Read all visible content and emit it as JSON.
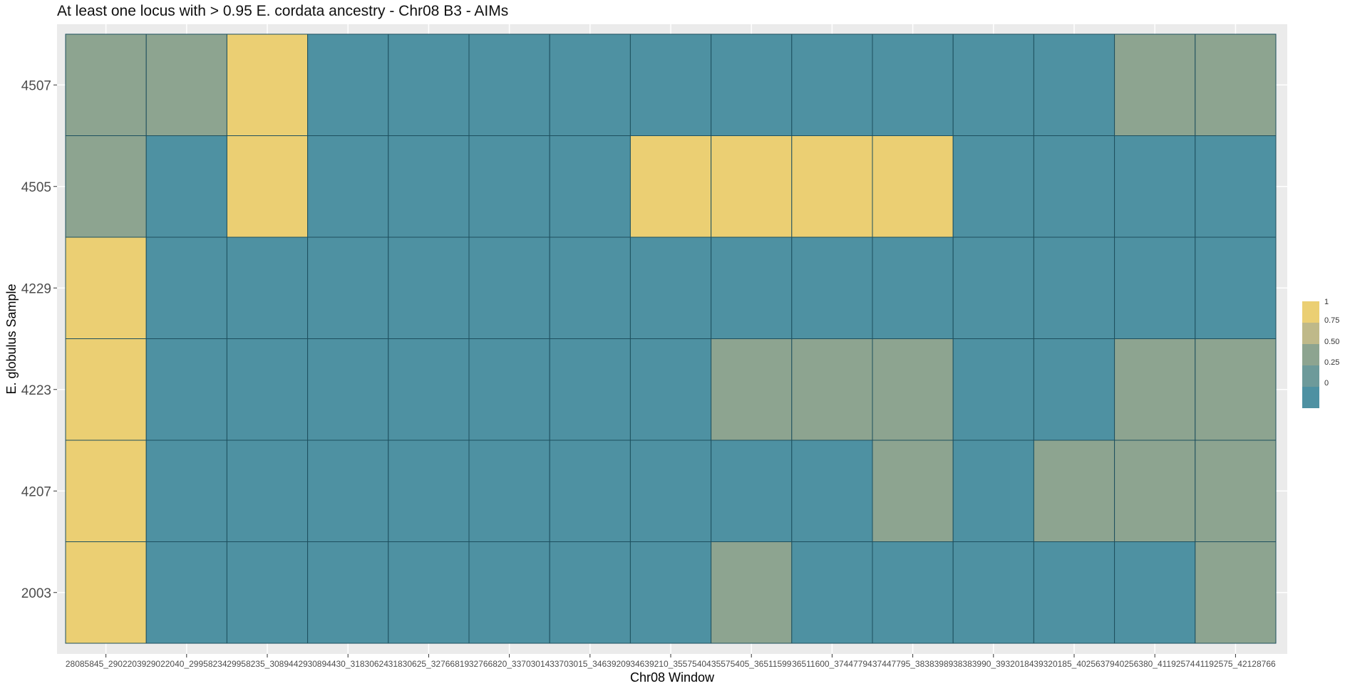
{
  "chart_data": {
    "type": "heatmap",
    "title": "At least one locus with > 0.95 E. cordata ancestry - Chr08 B3 - AIMs",
    "xlabel": "Chr08 Window",
    "ylabel": "E. globulus Sample",
    "x_categories": [
      "28085845_29022039",
      "29022040_29958234",
      "29958235_30894429",
      "30894430_31830624",
      "31830625_32766819",
      "32766820_33703014",
      "33703015_34639209",
      "34639210_35575404",
      "35575405_36511599",
      "36511600_37447794",
      "37447795_38383989",
      "38383990_39320184",
      "39320185_40256379",
      "40256380_41192574",
      "41192575_42128766"
    ],
    "y_categories": [
      "2003",
      "4207",
      "4223",
      "4229",
      "4505",
      "4507"
    ],
    "values": [
      [
        1,
        0,
        0,
        0,
        0,
        0,
        0,
        0,
        0.5,
        0,
        0,
        0,
        0,
        0,
        0.5
      ],
      [
        1,
        0,
        0,
        0,
        0,
        0,
        0,
        0,
        0,
        0,
        0.5,
        0,
        0.5,
        0.5,
        0.5
      ],
      [
        1,
        0,
        0,
        0,
        0,
        0,
        0,
        0,
        0.5,
        0.5,
        0.5,
        0,
        0,
        0.5,
        0.5
      ],
      [
        1,
        0,
        0,
        0,
        0,
        0,
        0,
        0,
        0,
        0,
        0,
        0,
        0,
        0,
        0
      ],
      [
        0.5,
        0,
        1,
        0,
        0,
        0,
        0,
        1,
        1,
        1,
        1,
        0,
        0,
        0,
        0
      ],
      [
        0.5,
        0.5,
        1,
        0,
        0,
        0,
        0,
        0,
        0,
        0,
        0,
        0,
        0,
        0.5,
        0.5
      ]
    ],
    "color_scale": {
      "low": "#4e91a2",
      "mid": "#8da490",
      "high": "#ebcf73"
    },
    "legend": {
      "position": "right",
      "breaks": [
        "1",
        "0.75",
        "0.50",
        "0.25",
        "0"
      ],
      "colors": [
        "#ebcf73",
        "#bfb989",
        "#8da490",
        "#6d9a9a",
        "#4e91a2"
      ]
    },
    "grid": true
  }
}
